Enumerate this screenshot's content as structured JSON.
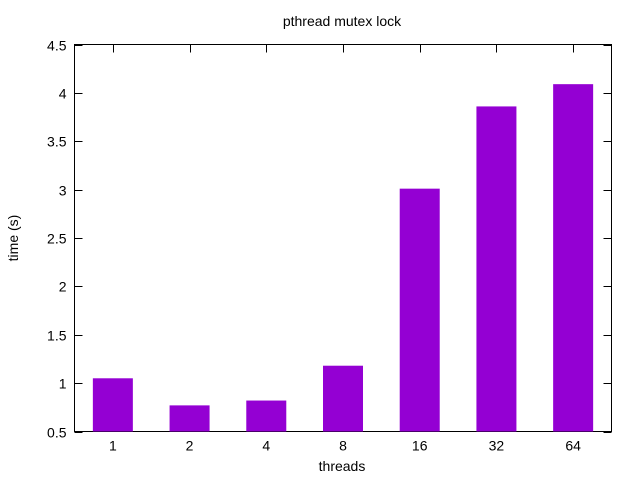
{
  "chart_data": {
    "type": "bar",
    "title": "pthread mutex lock",
    "xlabel": "threads",
    "ylabel": "time (s)",
    "categories": [
      "1",
      "2",
      "4",
      "8",
      "16",
      "32",
      "64"
    ],
    "values": [
      1.05,
      0.77,
      0.82,
      1.18,
      3.01,
      3.86,
      4.09
    ],
    "ylim": [
      0.5,
      4.5
    ],
    "yticks": [
      "0.5",
      "1",
      "1.5",
      "2",
      "2.5",
      "3",
      "3.5",
      "4",
      "4.5"
    ],
    "bar_color": "#9400d3",
    "grid": false,
    "legend": "none"
  }
}
